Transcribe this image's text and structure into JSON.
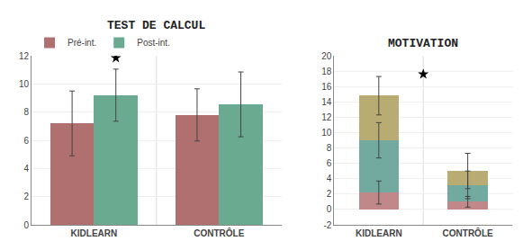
{
  "chart_data": [
    {
      "type": "bar",
      "title": "TEST DE CALCUL",
      "categories": [
        "KIDLEARN",
        "CONTRÔLE"
      ],
      "series": [
        {
          "name": "Pré-int.",
          "color": "#b07070",
          "values": [
            7.2,
            7.8
          ],
          "errors": [
            2.3,
            1.85
          ]
        },
        {
          "name": "Post-int.",
          "color": "#6aaa90",
          "values": [
            9.2,
            8.55
          ],
          "errors": [
            1.85,
            2.3
          ]
        }
      ],
      "ylim": [
        0,
        12
      ],
      "yticks": [
        0,
        2,
        4,
        6,
        8,
        10,
        12
      ],
      "grid": true,
      "legend": "top left",
      "annotations": [
        {
          "marker": "star",
          "category": "KIDLEARN",
          "series": "Post-int.",
          "y": 11.85
        }
      ]
    },
    {
      "type": "bar",
      "title": "MOTIVATION",
      "stacked": true,
      "categories": [
        "KIDLEARN",
        "CONTRÔLE"
      ],
      "series": [
        {
          "color": "#c08888",
          "values": [
            2.2,
            1.0
          ],
          "errors": [
            1.5,
            0.7
          ]
        },
        {
          "color": "#72aaa0",
          "values": [
            6.8,
            2.2
          ],
          "errors": [
            2.3,
            1.8
          ]
        },
        {
          "color": "#b8ac72",
          "values": [
            5.8,
            1.8
          ],
          "errors": [
            2.5,
            2.3
          ]
        }
      ],
      "ylim": [
        -2,
        20
      ],
      "yticks": [
        -2,
        0,
        2,
        4,
        6,
        8,
        10,
        12,
        14,
        16,
        18,
        20
      ],
      "grid": true,
      "annotations": [
        {
          "marker": "star",
          "y": 17.6
        }
      ]
    }
  ]
}
